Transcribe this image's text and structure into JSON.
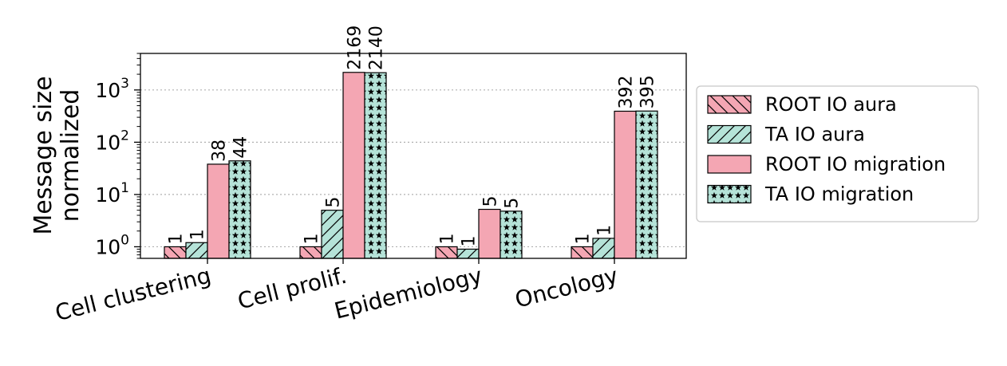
{
  "chart_data": {
    "type": "bar",
    "ylabel_lines": [
      "Message size",
      "normalized"
    ],
    "yscale": "log",
    "ylim": [
      0.6,
      5000
    ],
    "y_ticks": [
      {
        "value": 1,
        "base": "10",
        "exp": "0"
      },
      {
        "value": 10,
        "base": "10",
        "exp": "1"
      },
      {
        "value": 100,
        "base": "10",
        "exp": "2"
      },
      {
        "value": 1000,
        "base": "10",
        "exp": "3"
      }
    ],
    "grid": "y-dotted",
    "legend_position": "right-outside",
    "categories": [
      "Cell clustering",
      "Cell prolif.",
      "Epidemiology",
      "Oncology"
    ],
    "series": [
      {
        "name": "ROOT IO aura",
        "values": [
          1,
          1,
          1,
          1
        ],
        "labels": [
          "1",
          "1",
          "1",
          "1"
        ],
        "color": "#f4a6b3",
        "pattern": "backslash"
      },
      {
        "name": "TA IO aura",
        "values": [
          1.2,
          5,
          0.9,
          1.45
        ],
        "labels": [
          "1",
          "5",
          "1",
          "1"
        ],
        "color": "#b5e3d8",
        "pattern": "slash"
      },
      {
        "name": "ROOT IO migration",
        "values": [
          38,
          2169,
          5.2,
          392
        ],
        "labels": [
          "38",
          "2169",
          "5",
          "392"
        ],
        "color": "#f4a6b3",
        "pattern": "none"
      },
      {
        "name": "TA IO migration",
        "values": [
          44,
          2140,
          4.8,
          395
        ],
        "labels": [
          "44",
          "2140",
          "5",
          "395"
        ],
        "color": "#b5e3d8",
        "pattern": "stars"
      }
    ]
  }
}
